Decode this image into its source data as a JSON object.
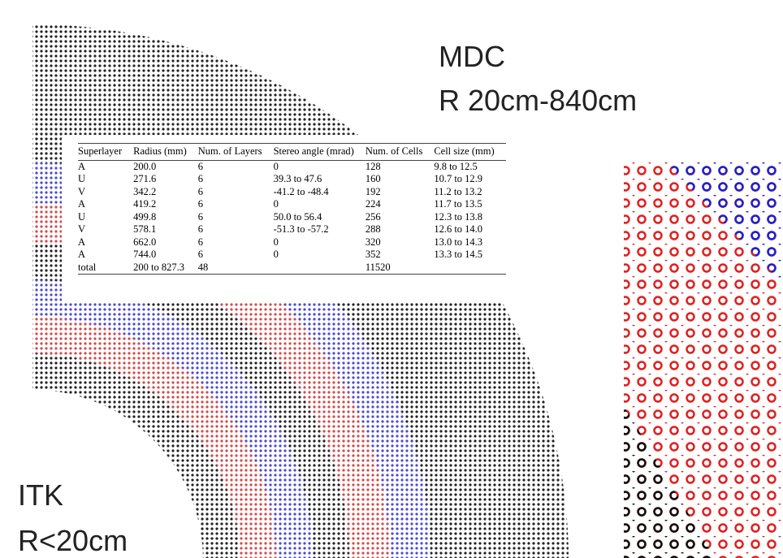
{
  "labels": {
    "mdc": "MDC",
    "mdc_range": "R 20cm-840cm",
    "itk": "ITK",
    "itk_range": "R<20cm"
  },
  "table": {
    "header": [
      "Superlayer",
      "Radius (mm)",
      "Num. of Layers",
      "Stereo angle (mrad)",
      "Num. of Cells",
      "Cell size (mm)"
    ],
    "rows": [
      [
        "A",
        "200.0",
        "6",
        "0",
        "128",
        "9.8 to 12.5"
      ],
      [
        "U",
        "271.6",
        "6",
        "39.3 to 47.6",
        "160",
        "10.7 to 12.9"
      ],
      [
        "V",
        "342.2",
        "6",
        "-41.2 to -48.4",
        "192",
        "11.2 to 13.2"
      ],
      [
        "A",
        "419.2",
        "6",
        "0",
        "224",
        "11.7 to 13.5"
      ],
      [
        "U",
        "499.8",
        "6",
        "50.0 to 56.4",
        "256",
        "12.3 to 13.8"
      ],
      [
        "V",
        "578.1",
        "6",
        "-51.3 to -57.2",
        "288",
        "12.6 to 14.0"
      ],
      [
        "A",
        "662.0",
        "6",
        "0",
        "320",
        "13.0 to 14.3"
      ],
      [
        "A",
        "744.0",
        "6",
        "0",
        "352",
        "13.3 to 14.5"
      ],
      [
        "total",
        "200 to 827.3",
        "48",
        "",
        "11520",
        ""
      ]
    ]
  }
}
